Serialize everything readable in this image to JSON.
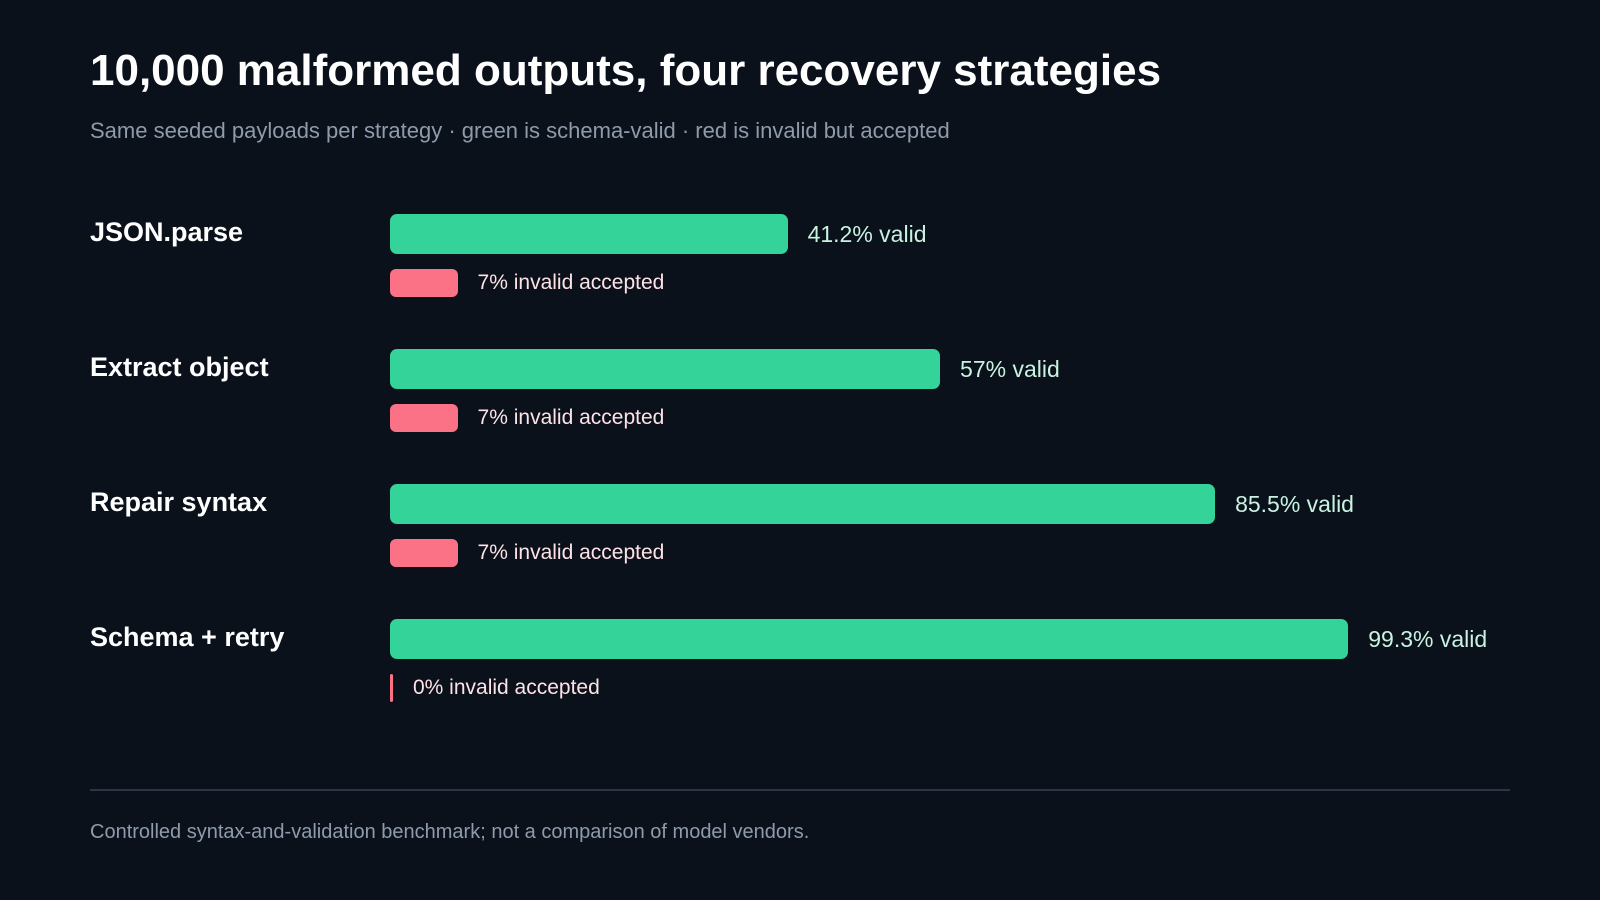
{
  "chart_data": {
    "type": "bar",
    "title": "10,000 malformed outputs, four recovery strategies",
    "subtitle": "Same seeded payloads per strategy · green is schema-valid · red is invalid but accepted",
    "categories": [
      "JSON.parse",
      "Extract object",
      "Repair syntax",
      "Schema + retry"
    ],
    "series": [
      {
        "name": "valid",
        "color": "#34d399",
        "values": [
          41.2,
          57,
          85.5,
          99.3
        ],
        "labels": [
          "41.2% valid",
          "57% valid",
          "85.5% valid",
          "99.3% valid"
        ]
      },
      {
        "name": "invalid accepted",
        "color": "#fb7185",
        "values": [
          7,
          7,
          7,
          0
        ],
        "labels": [
          "7% invalid accepted",
          "7% invalid accepted",
          "7% invalid accepted",
          "0% invalid accepted"
        ]
      }
    ],
    "xlim": [
      0,
      100
    ],
    "grid": false,
    "orientation": "horizontal"
  },
  "footnote": "Controlled syntax-and-validation benchmark; not a comparison of model vendors.",
  "colors": {
    "background": "#0a111b",
    "valid": "#34d399",
    "invalid": "#fb7185"
  }
}
